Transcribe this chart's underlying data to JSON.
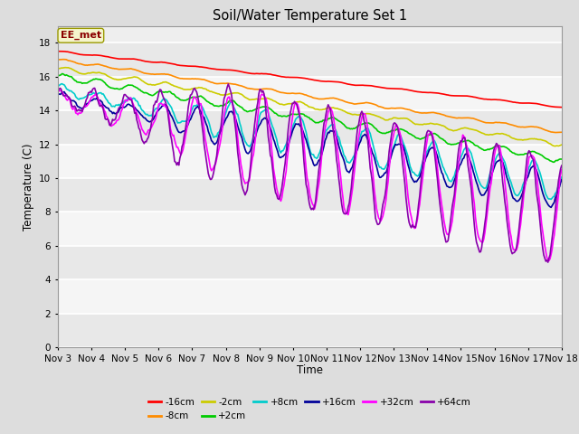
{
  "title": "Soil/Water Temperature Set 1",
  "xlabel": "Time",
  "ylabel": "Temperature (C)",
  "ylim": [
    0,
    19
  ],
  "yticks": [
    0,
    2,
    4,
    6,
    8,
    10,
    12,
    14,
    16,
    18
  ],
  "xtick_labels": [
    "Nov 3",
    "Nov 4",
    "Nov 5",
    "Nov 6",
    "Nov 7",
    "Nov 8",
    "Nov 9",
    "Nov 10",
    "Nov 11",
    "Nov 12",
    "Nov 13",
    "Nov 14",
    "Nov 15",
    "Nov 16",
    "Nov 17",
    "Nov 18"
  ],
  "annotation_text": "EE_met",
  "annotation_color": "#8b0000",
  "series_order": [
    "-16cm",
    "-8cm",
    "-2cm",
    "+2cm",
    "+8cm",
    "+16cm",
    "+32cm",
    "+64cm"
  ],
  "series": {
    "-16cm": {
      "color": "#ff0000",
      "linewidth": 1.2
    },
    "-8cm": {
      "color": "#ff8c00",
      "linewidth": 1.2
    },
    "-2cm": {
      "color": "#cccc00",
      "linewidth": 1.2
    },
    "+2cm": {
      "color": "#00cc00",
      "linewidth": 1.2
    },
    "+8cm": {
      "color": "#00cccc",
      "linewidth": 1.2
    },
    "+16cm": {
      "color": "#000099",
      "linewidth": 1.2
    },
    "+32cm": {
      "color": "#ff00ff",
      "linewidth": 1.2
    },
    "+64cm": {
      "color": "#8800aa",
      "linewidth": 1.2
    }
  },
  "bg_color": "#dddddd",
  "plot_bg_color": "#eeeeee",
  "grid_color": "#ffffff",
  "n_points": 480,
  "legend_row1": [
    "-16cm",
    "-8cm",
    "-2cm",
    "+2cm",
    "+8cm",
    "+16cm"
  ],
  "legend_row2": [
    "+32cm",
    "+64cm"
  ]
}
